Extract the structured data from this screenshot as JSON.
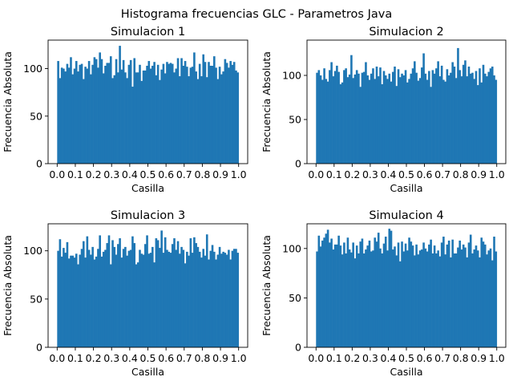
{
  "suptitle": "Histograma frecuencias GLC - Parametros Java",
  "chart_data": [
    {
      "type": "bar",
      "title": "Simulacion 1",
      "xlabel": "Casilla",
      "ylabel": "Frecuencia Absoluta",
      "x_range": [
        0.0,
        1.0
      ],
      "bins": 100,
      "ylim": [
        0,
        130
      ],
      "xticks": [
        "0.0",
        "0.1",
        "0.2",
        "0.3",
        "0.4",
        "0.5",
        "0.6",
        "0.7",
        "0.8",
        "0.9",
        "1.0"
      ],
      "yticks": [
        "0",
        "50",
        "100"
      ],
      "color": "#1f77b4",
      "values": [
        108,
        90,
        101,
        100,
        97,
        105,
        101,
        112,
        94,
        100,
        108,
        97,
        104,
        105,
        89,
        102,
        100,
        108,
        94,
        104,
        112,
        110,
        101,
        117,
        110,
        95,
        103,
        106,
        106,
        113,
        90,
        93,
        110,
        96,
        124,
        99,
        109,
        96,
        90,
        104,
        109,
        81,
        111,
        96,
        96,
        104,
        87,
        98,
        98,
        103,
        108,
        100,
        103,
        107,
        93,
        104,
        88,
        99,
        105,
        95,
        107,
        105,
        106,
        105,
        96,
        100,
        111,
        92,
        111,
        103,
        108,
        102,
        92,
        101,
        102,
        117,
        97,
        89,
        105,
        92,
        115,
        107,
        91,
        107,
        103,
        103,
        113,
        101,
        89,
        102,
        94,
        97,
        110,
        106,
        101,
        108,
        104,
        107,
        98,
        96
      ]
    },
    {
      "type": "bar",
      "title": "Simulacion 2",
      "xlabel": "Casilla",
      "ylabel": "Frecuencia Absoluta",
      "x_range": [
        0.0,
        1.0
      ],
      "bins": 100,
      "ylim": [
        0,
        140
      ],
      "xticks": [
        "0.0",
        "0.1",
        "0.2",
        "0.3",
        "0.4",
        "0.5",
        "0.6",
        "0.7",
        "0.8",
        "0.9",
        "1.0"
      ],
      "yticks": [
        "0",
        "50",
        "100"
      ],
      "color": "#1f77b4",
      "values": [
        103,
        106,
        100,
        95,
        108,
        96,
        93,
        106,
        115,
        99,
        105,
        111,
        104,
        90,
        92,
        106,
        108,
        98,
        101,
        123,
        97,
        101,
        106,
        102,
        87,
        103,
        104,
        115,
        100,
        95,
        102,
        108,
        96,
        110,
        99,
        109,
        90,
        105,
        100,
        96,
        102,
        93,
        104,
        110,
        88,
        107,
        98,
        102,
        100,
        106,
        92,
        96,
        102,
        108,
        116,
        103,
        94,
        97,
        109,
        125,
        102,
        95,
        105,
        87,
        106,
        102,
        108,
        116,
        99,
        111,
        95,
        93,
        107,
        100,
        103,
        115,
        110,
        97,
        131,
        106,
        99,
        112,
        117,
        99,
        110,
        102,
        103,
        96,
        105,
        89,
        108,
        92,
        112,
        102,
        99,
        104,
        108,
        110,
        100,
        95
      ]
    },
    {
      "type": "bar",
      "title": "Simulacion 3",
      "xlabel": "Casilla",
      "ylabel": "Frecuencia Absoluta",
      "x_range": [
        0.0,
        1.0
      ],
      "bins": 100,
      "ylim": [
        0,
        128
      ],
      "xticks": [
        "0.0",
        "0.1",
        "0.2",
        "0.3",
        "0.4",
        "0.5",
        "0.6",
        "0.7",
        "0.8",
        "0.9",
        "1.0"
      ],
      "yticks": [
        "0",
        "50",
        "100"
      ],
      "color": "#1f77b4",
      "values": [
        100,
        112,
        94,
        103,
        98,
        109,
        92,
        95,
        95,
        93,
        97,
        86,
        96,
        102,
        110,
        93,
        115,
        101,
        96,
        104,
        91,
        94,
        102,
        116,
        94,
        99,
        101,
        108,
        116,
        86,
        111,
        104,
        96,
        107,
        113,
        93,
        102,
        104,
        95,
        100,
        101,
        115,
        108,
        86,
        88,
        101,
        97,
        96,
        107,
        116,
        97,
        98,
        104,
        88,
        113,
        111,
        103,
        121,
        98,
        114,
        101,
        99,
        98,
        107,
        113,
        101,
        110,
        97,
        104,
        101,
        87,
        99,
        95,
        113,
        98,
        114,
        108,
        104,
        99,
        93,
        102,
        95,
        117,
        91,
        100,
        106,
        99,
        91,
        96,
        104,
        97,
        99,
        98,
        96,
        101,
        91,
        100,
        102,
        102,
        98
      ]
    },
    {
      "type": "bar",
      "title": "Simulacion 4",
      "xlabel": "Casilla",
      "ylabel": "Frecuencia Absoluta",
      "x_range": [
        0.0,
        1.0
      ],
      "bins": 100,
      "ylim": [
        0,
        125
      ],
      "xticks": [
        "0.0",
        "0.1",
        "0.2",
        "0.3",
        "0.4",
        "0.5",
        "0.6",
        "0.7",
        "0.8",
        "0.9",
        "1.0"
      ],
      "yticks": [
        "0",
        "50",
        "100"
      ],
      "color": "#1f77b4",
      "values": [
        97,
        113,
        102,
        108,
        111,
        115,
        119,
        106,
        110,
        99,
        104,
        104,
        113,
        103,
        94,
        106,
        95,
        111,
        99,
        96,
        106,
        90,
        103,
        95,
        107,
        110,
        95,
        99,
        103,
        108,
        97,
        98,
        111,
        107,
        116,
        100,
        95,
        105,
        112,
        98,
        120,
        118,
        99,
        102,
        93,
        106,
        87,
        107,
        97,
        105,
        98,
        111,
        107,
        103,
        93,
        104,
        94,
        98,
        99,
        106,
        100,
        97,
        104,
        109,
        95,
        103,
        95,
        98,
        92,
        106,
        112,
        94,
        104,
        108,
        91,
        109,
        95,
        95,
        101,
        108,
        99,
        104,
        101,
        91,
        106,
        114,
        95,
        99,
        103,
        98,
        91,
        111,
        107,
        104,
        94,
        98,
        100,
        88,
        112,
        97
      ]
    }
  ]
}
